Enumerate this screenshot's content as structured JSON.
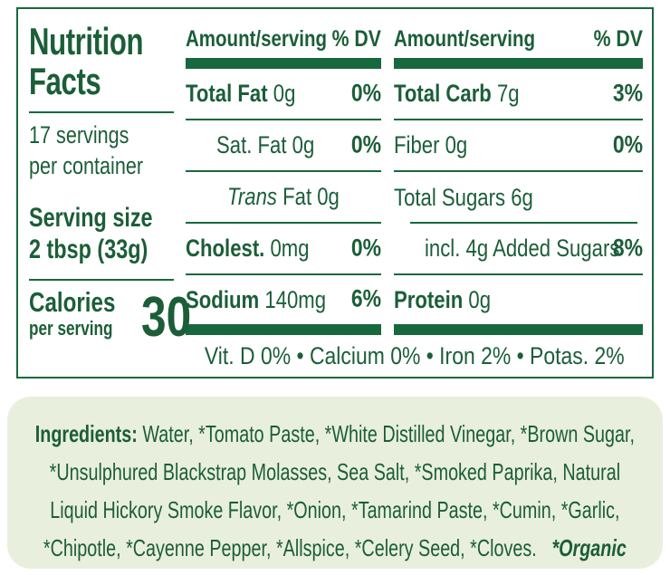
{
  "panel": {
    "title": "Nutrition Facts",
    "servings_lines": [
      "17 servings",
      "per container"
    ],
    "serving_size_label": "Serving size",
    "serving_size_value": "2 tbsp (33g)",
    "calories_label": "Calories",
    "calories_sublabel": "per serving",
    "calories_value": "30",
    "columns": [
      {
        "header_amount": "Amount/serving",
        "header_dv": "% DV",
        "rows": [
          {
            "bold": "Total Fat",
            "italic": "",
            "reg": " 0g",
            "dv": "0%"
          },
          {
            "bold": "",
            "italic": "",
            "reg": "Sat. Fat 0g",
            "dv": "0%"
          },
          {
            "bold": "",
            "italic": "Trans",
            "reg": " Fat 0g",
            "dv": ""
          },
          {
            "bold": "Cholest.",
            "italic": "",
            "reg": " 0mg",
            "dv": "0%"
          },
          {
            "bold": "Sodium",
            "italic": "",
            "reg": " 140mg",
            "dv": "6%"
          }
        ]
      },
      {
        "header_amount": "Amount/serving",
        "header_dv": "% DV",
        "rows": [
          {
            "bold": "Total Carb",
            "italic": "",
            "reg": " 7g",
            "dv": "3%"
          },
          {
            "bold": "",
            "italic": "",
            "reg": "Fiber 0g",
            "dv": "0%"
          },
          {
            "bold": "",
            "italic": "",
            "reg": "Total Sugars 6g",
            "dv": ""
          },
          {
            "bold": "",
            "italic": "",
            "reg": "incl. 4g Added Sugars",
            "dv": "8%"
          },
          {
            "bold": "Protein",
            "italic": "",
            "reg": " 0g",
            "dv": ""
          }
        ]
      }
    ],
    "micronutrients": "Vit. D 0% • Calcium 0% • Iron 2% • Potas. 2%"
  },
  "ingredients": {
    "label": "Ingredients:",
    "text": " Water, *Tomato Paste, *White Distilled Vinegar, *Brown Sugar, *Unsulphured Blackstrap Molasses, Sea Salt, *Smoked Paprika, Natural Liquid Hickory Smoke Flavor, *Onion, *Tamarind Paste, *Cumin, *Garlic, *Chipotle, *Cayenne Pepper, *Allspice, *Celery Seed, *Cloves.",
    "organic_note": "*Organic"
  },
  "colors": {
    "green": "#1b5e38",
    "rule": "#17693d",
    "ing_bg": "#e9efdd",
    "bg": "#ffffff"
  }
}
